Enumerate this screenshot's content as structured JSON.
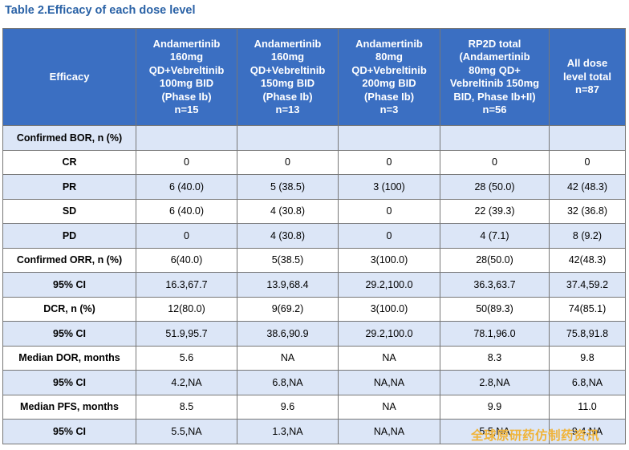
{
  "title": "Table 2.Efficacy of each dose level",
  "header": {
    "efficacy": "Efficacy",
    "col1": [
      "Andamertinib",
      "160mg",
      "QD+Vebreltinib",
      "100mg BID",
      "(Phase Ib)",
      "n=15"
    ],
    "col2": [
      "Andamertinib",
      "160mg",
      "QD+Vebreltinib",
      "150mg BID",
      "(Phase Ib)",
      "n=13"
    ],
    "col3": [
      "Andamertinib",
      "80mg",
      "QD+Vebreltinib",
      "200mg BID",
      "(Phase Ib)",
      "n=3"
    ],
    "col4": [
      "RP2D total",
      "(Andamertinib",
      "80mg QD+",
      "Vebreltinib 150mg",
      "BID, Phase Ib+II)",
      "n=56"
    ],
    "col5": [
      "All dose",
      "level total",
      "n=87"
    ]
  },
  "rows": [
    {
      "label": "Confirmed BOR, n (%)",
      "c1": "",
      "c2": "",
      "c3": "",
      "c4": "",
      "c5": ""
    },
    {
      "label": "CR",
      "c1": "0",
      "c2": "0",
      "c3": "0",
      "c4": "0",
      "c5": "0"
    },
    {
      "label": "PR",
      "c1": "6 (40.0)",
      "c2": "5 (38.5)",
      "c3": "3 (100)",
      "c4": "28 (50.0)",
      "c5": "42 (48.3)"
    },
    {
      "label": "SD",
      "c1": "6 (40.0)",
      "c2": "4 (30.8)",
      "c3": "0",
      "c4": "22 (39.3)",
      "c5": "32 (36.8)"
    },
    {
      "label": "PD",
      "c1": "0",
      "c2": "4 (30.8)",
      "c3": "0",
      "c4": "4 (7.1)",
      "c5": "8 (9.2)"
    },
    {
      "label": "Confirmed ORR, n (%)",
      "c1": "6(40.0)",
      "c2": "5(38.5)",
      "c3": "3(100.0)",
      "c4": "28(50.0)",
      "c5": "42(48.3)"
    },
    {
      "label": "95% CI",
      "c1": "16.3,67.7",
      "c2": "13.9,68.4",
      "c3": "29.2,100.0",
      "c4": "36.3,63.7",
      "c5": "37.4,59.2"
    },
    {
      "label": "DCR, n (%)",
      "c1": "12(80.0)",
      "c2": "9(69.2)",
      "c3": "3(100.0)",
      "c4": "50(89.3)",
      "c5": "74(85.1)"
    },
    {
      "label": "95% CI",
      "c1": "51.9,95.7",
      "c2": "38.6,90.9",
      "c3": "29.2,100.0",
      "c4": "78.1,96.0",
      "c5": "75.8,91.8"
    },
    {
      "label": "Median DOR, months",
      "c1": "5.6",
      "c2": "NA",
      "c3": "NA",
      "c4": "8.3",
      "c5": "9.8"
    },
    {
      "label": "95% CI",
      "c1": "4.2,NA",
      "c2": "6.8,NA",
      "c3": "NA,NA",
      "c4": "2.8,NA",
      "c5": "6.8,NA"
    },
    {
      "label": "Median PFS, months",
      "c1": "8.5",
      "c2": "9.6",
      "c3": "NA",
      "c4": "9.9",
      "c5": "11.0"
    },
    {
      "label": "95% CI",
      "c1": "5.5,NA",
      "c2": "1.3,NA",
      "c3": "NA,NA",
      "c4": "5.5,NA",
      "c5": "9.4,NA"
    }
  ],
  "watermark": "全球原研药仿制药资讯"
}
